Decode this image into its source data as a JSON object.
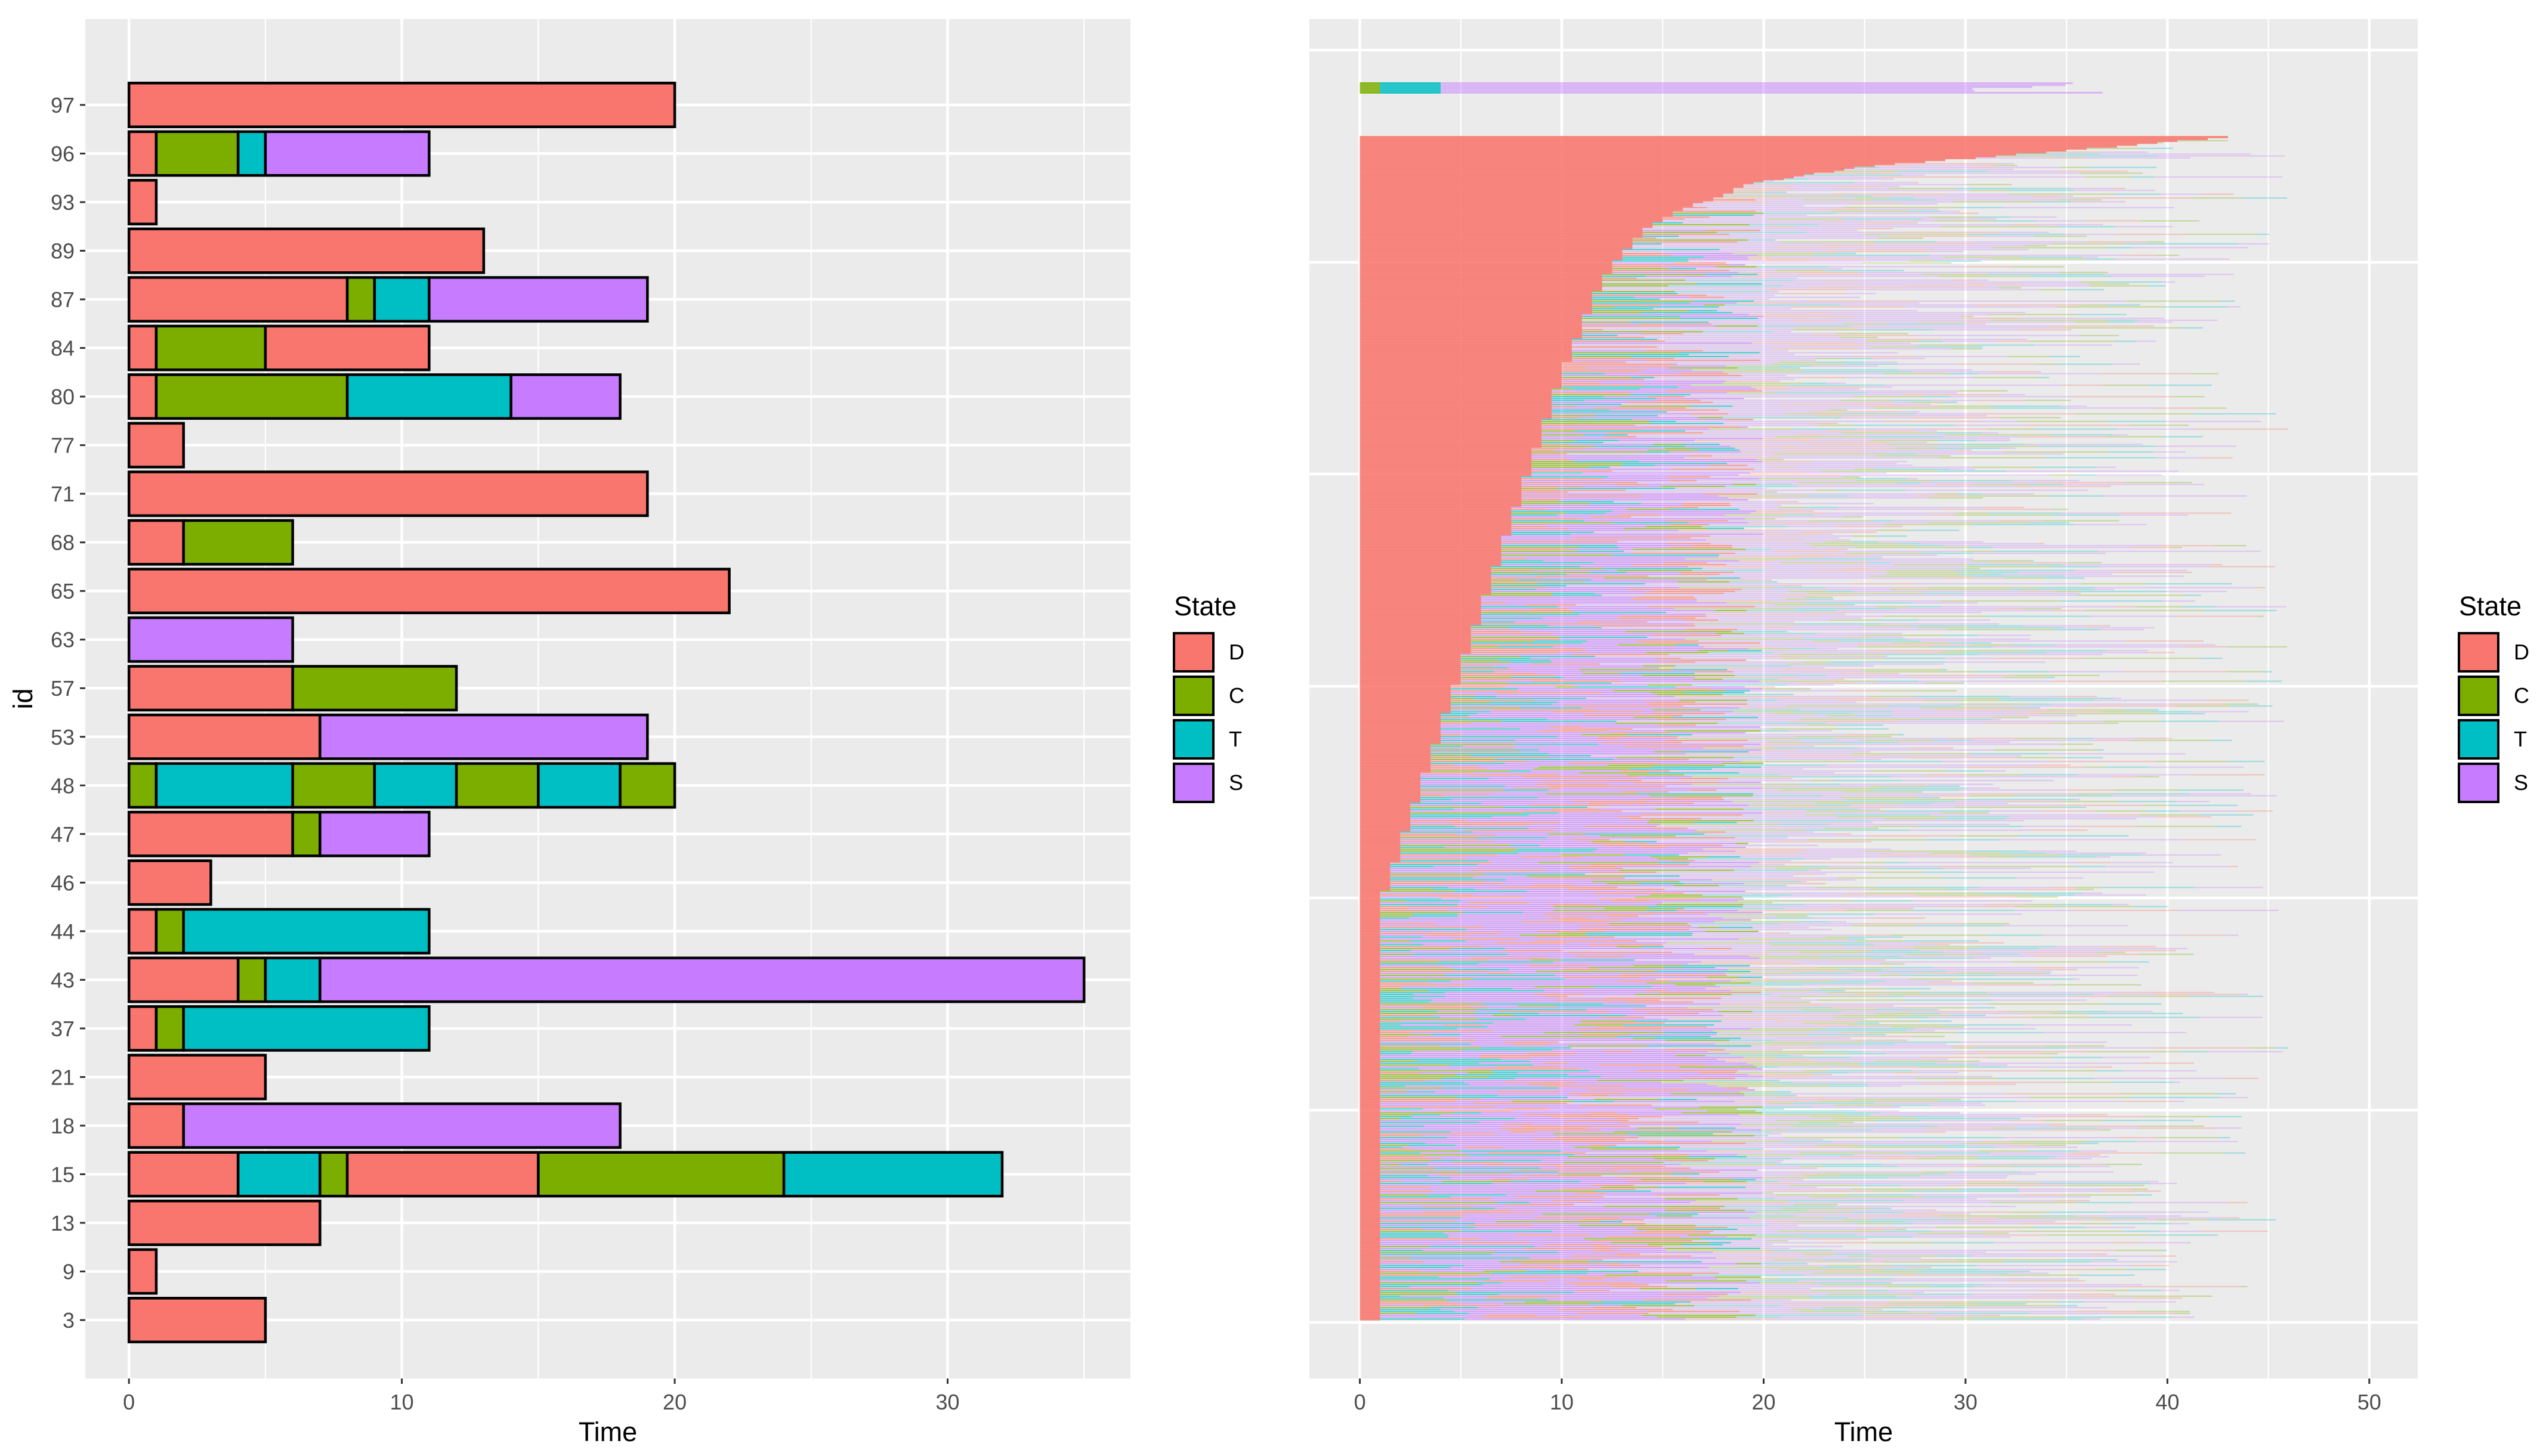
{
  "colors": {
    "D": "#F8766D",
    "C": "#7CAE00",
    "T": "#00BFC4",
    "S": "#C77CFF"
  },
  "chart_data": [
    {
      "type": "bar",
      "subtype": "stacked-horizontal-timeline",
      "xlabel": "Time",
      "ylabel": "id",
      "xlim": [
        -1.6,
        36.7
      ],
      "xticks": [
        "0",
        "10",
        "20",
        "30"
      ],
      "legend": {
        "title": "State",
        "entries": [
          "D",
          "C",
          "T",
          "S"
        ],
        "position": "right"
      },
      "rows": [
        {
          "id": "3",
          "segments": [
            [
              "D",
              0,
              5
            ]
          ]
        },
        {
          "id": "9",
          "segments": [
            [
              "D",
              0,
              1
            ]
          ]
        },
        {
          "id": "13",
          "segments": [
            [
              "D",
              0,
              7
            ]
          ]
        },
        {
          "id": "15",
          "segments": [
            [
              "D",
              0,
              4
            ],
            [
              "T",
              4,
              7
            ],
            [
              "C",
              7,
              8
            ],
            [
              "D",
              8,
              15
            ],
            [
              "C",
              15,
              24
            ],
            [
              "T",
              24,
              32
            ]
          ]
        },
        {
          "id": "18",
          "segments": [
            [
              "D",
              0,
              2
            ],
            [
              "S",
              2,
              18
            ]
          ]
        },
        {
          "id": "21",
          "segments": [
            [
              "D",
              0,
              5
            ]
          ]
        },
        {
          "id": "37",
          "segments": [
            [
              "D",
              0,
              1
            ],
            [
              "C",
              1,
              2
            ],
            [
              "T",
              2,
              11
            ]
          ]
        },
        {
          "id": "43",
          "segments": [
            [
              "D",
              0,
              4
            ],
            [
              "C",
              4,
              5
            ],
            [
              "T",
              5,
              7
            ],
            [
              "S",
              7,
              35
            ]
          ]
        },
        {
          "id": "44",
          "segments": [
            [
              "D",
              0,
              1
            ],
            [
              "C",
              1,
              2
            ],
            [
              "T",
              2,
              11
            ]
          ]
        },
        {
          "id": "46",
          "segments": [
            [
              "D",
              0,
              3
            ]
          ]
        },
        {
          "id": "47",
          "segments": [
            [
              "D",
              0,
              6
            ],
            [
              "C",
              6,
              7
            ],
            [
              "S",
              7,
              11
            ]
          ]
        },
        {
          "id": "48",
          "segments": [
            [
              "C",
              0,
              1
            ],
            [
              "T",
              1,
              6
            ],
            [
              "C",
              6,
              9
            ],
            [
              "T",
              9,
              12
            ],
            [
              "C",
              12,
              15
            ],
            [
              "T",
              15,
              18
            ],
            [
              "C",
              18,
              20
            ]
          ]
        },
        {
          "id": "53",
          "segments": [
            [
              "D",
              0,
              7
            ],
            [
              "S",
              7,
              19
            ]
          ]
        },
        {
          "id": "57",
          "segments": [
            [
              "D",
              0,
              6
            ],
            [
              "C",
              6,
              12
            ]
          ]
        },
        {
          "id": "63",
          "segments": [
            [
              "S",
              0,
              6
            ]
          ]
        },
        {
          "id": "65",
          "segments": [
            [
              "D",
              0,
              22
            ]
          ]
        },
        {
          "id": "68",
          "segments": [
            [
              "D",
              0,
              2
            ],
            [
              "C",
              2,
              6
            ]
          ]
        },
        {
          "id": "71",
          "segments": [
            [
              "D",
              0,
              19
            ]
          ]
        },
        {
          "id": "77",
          "segments": [
            [
              "D",
              0,
              2
            ]
          ]
        },
        {
          "id": "80",
          "segments": [
            [
              "D",
              0,
              1
            ],
            [
              "C",
              1,
              8
            ],
            [
              "T",
              8,
              14
            ],
            [
              "S",
              14,
              18
            ]
          ]
        },
        {
          "id": "84",
          "segments": [
            [
              "D",
              0,
              1
            ],
            [
              "C",
              1,
              5
            ],
            [
              "D",
              5,
              11
            ]
          ]
        },
        {
          "id": "87",
          "segments": [
            [
              "D",
              0,
              8
            ],
            [
              "C",
              8,
              9
            ],
            [
              "T",
              9,
              11
            ],
            [
              "S",
              11,
              19
            ]
          ]
        },
        {
          "id": "89",
          "segments": [
            [
              "D",
              0,
              13
            ]
          ]
        },
        {
          "id": "93",
          "segments": [
            [
              "D",
              0,
              1
            ]
          ]
        },
        {
          "id": "96",
          "segments": [
            [
              "D",
              0,
              1
            ],
            [
              "C",
              1,
              4
            ],
            [
              "T",
              4,
              5
            ],
            [
              "S",
              5,
              11
            ]
          ]
        },
        {
          "id": "97",
          "segments": [
            [
              "D",
              0,
              20
            ]
          ]
        }
      ]
    },
    {
      "type": "bar",
      "subtype": "stacked-horizontal-timeline-dense",
      "xlabel": "Time",
      "xlim": [
        -2.5,
        52.4
      ],
      "xticks": [
        "0",
        "10",
        "20",
        "30",
        "40",
        "50"
      ],
      "legend": {
        "title": "State",
        "entries": [
          "D",
          "C",
          "T",
          "S"
        ],
        "position": "right"
      },
      "n_rows_approx": 620,
      "d_duration_profile": [
        [
          0,
          1
        ],
        [
          0.35,
          1
        ],
        [
          0.4,
          2
        ],
        [
          0.45,
          3
        ],
        [
          0.5,
          4
        ],
        [
          0.55,
          5
        ],
        [
          0.6,
          6
        ],
        [
          0.65,
          7
        ],
        [
          0.7,
          8
        ],
        [
          0.75,
          9
        ],
        [
          0.8,
          10
        ],
        [
          0.84,
          11
        ],
        [
          0.88,
          12
        ],
        [
          0.9,
          13
        ],
        [
          0.92,
          14
        ],
        [
          0.94,
          16
        ],
        [
          0.95,
          18
        ],
        [
          0.96,
          19
        ],
        [
          0.975,
          25
        ],
        [
          0.99,
          36
        ],
        [
          1.0,
          43
        ]
      ],
      "top_outlier_rows": {
        "count": 6,
        "segments": [
          [
            "C",
            0,
            1
          ],
          [
            "T",
            1,
            4
          ],
          [
            "S",
            4,
            37
          ]
        ]
      }
    }
  ]
}
